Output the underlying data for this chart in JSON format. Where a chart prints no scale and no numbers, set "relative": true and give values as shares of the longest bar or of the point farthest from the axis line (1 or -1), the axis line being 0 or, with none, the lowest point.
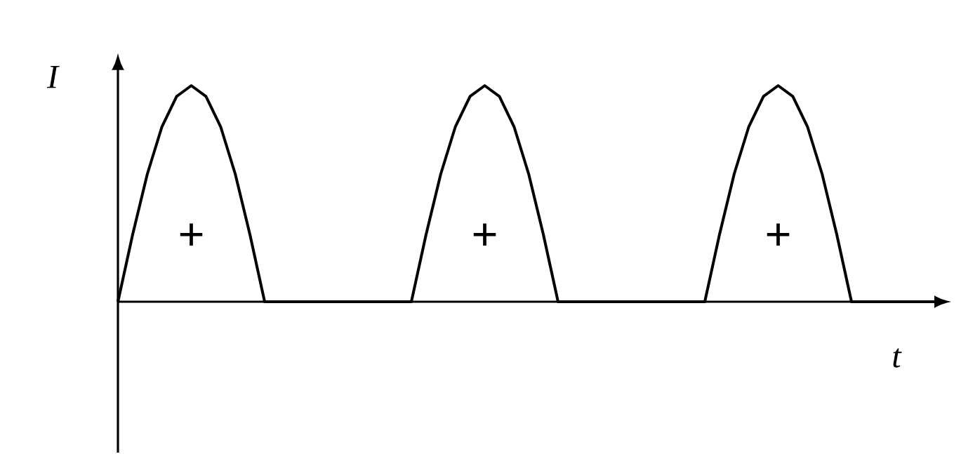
{
  "chart_data": {
    "type": "line",
    "relative": true,
    "xlabel": "t",
    "ylabel": "I",
    "color": "#000000",
    "categories": [
      null,
      null,
      null,
      null,
      null,
      null,
      null,
      null,
      null,
      null,
      null,
      null,
      null,
      null,
      null,
      null,
      null,
      null,
      null,
      null,
      null,
      null,
      null,
      null,
      null,
      null,
      null,
      null,
      null,
      null,
      null,
      null,
      null,
      null,
      null,
      null,
      null,
      null,
      null,
      null,
      null,
      null,
      null,
      null,
      null,
      null,
      null,
      null,
      null,
      null,
      null,
      null,
      null,
      null,
      null,
      null,
      null
    ],
    "values": [
      0,
      0.31,
      0.59,
      0.81,
      0.95,
      1,
      0.95,
      0.81,
      0.59,
      0.31,
      0,
      0,
      0,
      0,
      0,
      0,
      0,
      0,
      0,
      0,
      0,
      0.31,
      0.59,
      0.81,
      0.95,
      1,
      0.95,
      0.81,
      0.59,
      0.31,
      0,
      0,
      0,
      0,
      0,
      0,
      0,
      0,
      0,
      0,
      0,
      0.31,
      0.59,
      0.81,
      0.95,
      1,
      0.95,
      0.81,
      0.59,
      0.31,
      0,
      0,
      0,
      0,
      0,
      0,
      0
    ],
    "annotations": [
      "+",
      "+",
      "+"
    ],
    "marker": "none",
    "line_style": "solid"
  }
}
